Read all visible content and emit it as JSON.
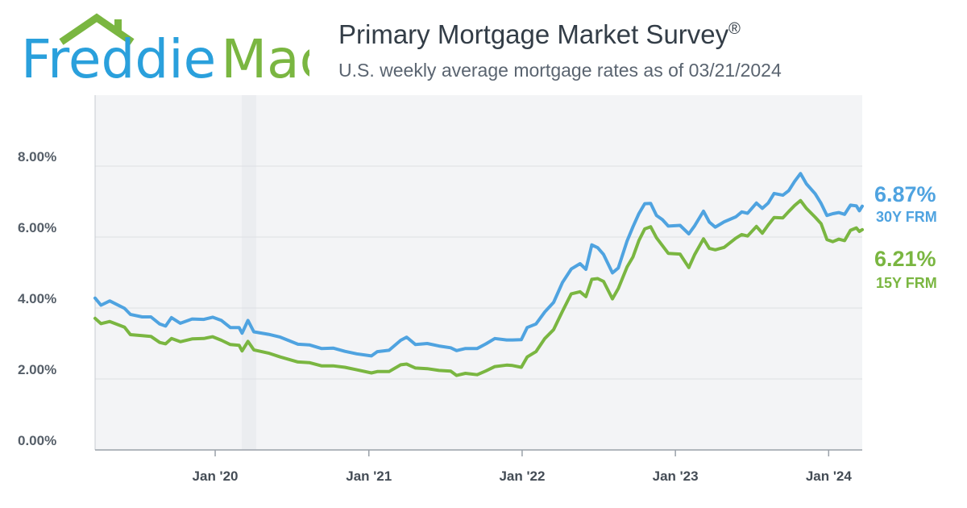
{
  "logo": {
    "part1": "Freddie",
    "part2": "Mac",
    "house_icon": "house-roof-icon"
  },
  "header": {
    "title": "Primary Mortgage Market Survey",
    "title_mark": "®",
    "subtitle": "U.S. weekly average mortgage rates as of 03/21/2024"
  },
  "colors": {
    "series_30y": "#4fa3e0",
    "series_15y": "#7ab641",
    "grid": "#dcdfe3",
    "text": "#555e68"
  },
  "chart_data": {
    "type": "line",
    "xlabel": "",
    "ylabel": "",
    "ylim": [
      0,
      10
    ],
    "xlim": [
      "2019-03-21",
      "2024-03-21"
    ],
    "grid": true,
    "legend": "end-labels-right",
    "yticks": [
      {
        "value": 0,
        "label": "0.00%"
      },
      {
        "value": 2,
        "label": "2.00%"
      },
      {
        "value": 4,
        "label": "4.00%"
      },
      {
        "value": 6,
        "label": "6.00%"
      },
      {
        "value": 8,
        "label": "8.00%"
      }
    ],
    "xticks": [
      {
        "date": "2020-01-01",
        "label": "Jan '20"
      },
      {
        "date": "2021-01-01",
        "label": "Jan '21"
      },
      {
        "date": "2022-01-01",
        "label": "Jan '22"
      },
      {
        "date": "2023-01-01",
        "label": "Jan '23"
      },
      {
        "date": "2024-01-01",
        "label": "Jan '24"
      }
    ],
    "series": [
      {
        "name": "30Y FRM",
        "end_value_label": "6.87%",
        "color": "#4fa3e0",
        "points": [
          [
            "2019-03-21",
            4.28
          ],
          [
            "2019-04-04",
            4.08
          ],
          [
            "2019-04-25",
            4.2
          ],
          [
            "2019-05-30",
            3.99
          ],
          [
            "2019-06-13",
            3.82
          ],
          [
            "2019-07-11",
            3.75
          ],
          [
            "2019-08-01",
            3.75
          ],
          [
            "2019-08-22",
            3.55
          ],
          [
            "2019-09-05",
            3.49
          ],
          [
            "2019-09-19",
            3.73
          ],
          [
            "2019-10-10",
            3.57
          ],
          [
            "2019-11-07",
            3.69
          ],
          [
            "2019-12-05",
            3.68
          ],
          [
            "2019-12-26",
            3.74
          ],
          [
            "2020-01-16",
            3.65
          ],
          [
            "2020-02-06",
            3.45
          ],
          [
            "2020-02-27",
            3.45
          ],
          [
            "2020-03-05",
            3.29
          ],
          [
            "2020-03-19",
            3.65
          ],
          [
            "2020-04-02",
            3.33
          ],
          [
            "2020-05-07",
            3.26
          ],
          [
            "2020-06-04",
            3.18
          ],
          [
            "2020-07-16",
            2.98
          ],
          [
            "2020-08-13",
            2.96
          ],
          [
            "2020-09-10",
            2.86
          ],
          [
            "2020-10-08",
            2.87
          ],
          [
            "2020-11-05",
            2.78
          ],
          [
            "2020-12-03",
            2.71
          ],
          [
            "2021-01-07",
            2.65
          ],
          [
            "2021-01-21",
            2.77
          ],
          [
            "2021-02-18",
            2.81
          ],
          [
            "2021-03-18",
            3.09
          ],
          [
            "2021-04-01",
            3.18
          ],
          [
            "2021-04-22",
            2.97
          ],
          [
            "2021-05-20",
            3.0
          ],
          [
            "2021-06-17",
            2.93
          ],
          [
            "2021-07-15",
            2.88
          ],
          [
            "2021-07-29",
            2.8
          ],
          [
            "2021-08-19",
            2.86
          ],
          [
            "2021-09-16",
            2.86
          ],
          [
            "2021-10-07",
            2.99
          ],
          [
            "2021-10-28",
            3.14
          ],
          [
            "2021-11-25",
            3.1
          ],
          [
            "2021-12-09",
            3.1
          ],
          [
            "2021-12-30",
            3.11
          ],
          [
            "2022-01-13",
            3.45
          ],
          [
            "2022-02-03",
            3.55
          ],
          [
            "2022-02-24",
            3.89
          ],
          [
            "2022-03-17",
            4.16
          ],
          [
            "2022-04-07",
            4.72
          ],
          [
            "2022-04-28",
            5.1
          ],
          [
            "2022-05-19",
            5.25
          ],
          [
            "2022-06-02",
            5.09
          ],
          [
            "2022-06-16",
            5.78
          ],
          [
            "2022-06-30",
            5.7
          ],
          [
            "2022-07-14",
            5.51
          ],
          [
            "2022-08-04",
            4.99
          ],
          [
            "2022-08-18",
            5.13
          ],
          [
            "2022-09-08",
            5.89
          ],
          [
            "2022-09-22",
            6.29
          ],
          [
            "2022-10-06",
            6.66
          ],
          [
            "2022-10-20",
            6.94
          ],
          [
            "2022-11-03",
            6.95
          ],
          [
            "2022-11-17",
            6.61
          ],
          [
            "2022-12-01",
            6.49
          ],
          [
            "2022-12-15",
            6.31
          ],
          [
            "2023-01-12",
            6.33
          ],
          [
            "2023-02-02",
            6.09
          ],
          [
            "2023-02-16",
            6.32
          ],
          [
            "2023-03-09",
            6.73
          ],
          [
            "2023-03-23",
            6.42
          ],
          [
            "2023-04-06",
            6.28
          ],
          [
            "2023-04-27",
            6.43
          ],
          [
            "2023-05-25",
            6.57
          ],
          [
            "2023-06-08",
            6.71
          ],
          [
            "2023-06-22",
            6.67
          ],
          [
            "2023-07-13",
            6.96
          ],
          [
            "2023-07-27",
            6.81
          ],
          [
            "2023-08-10",
            6.96
          ],
          [
            "2023-08-24",
            7.23
          ],
          [
            "2023-09-14",
            7.18
          ],
          [
            "2023-09-28",
            7.31
          ],
          [
            "2023-10-12",
            7.57
          ],
          [
            "2023-10-26",
            7.79
          ],
          [
            "2023-11-09",
            7.5
          ],
          [
            "2023-11-30",
            7.22
          ],
          [
            "2023-12-14",
            6.95
          ],
          [
            "2023-12-28",
            6.61
          ],
          [
            "2024-01-11",
            6.66
          ],
          [
            "2024-01-25",
            6.69
          ],
          [
            "2024-02-08",
            6.64
          ],
          [
            "2024-02-22",
            6.9
          ],
          [
            "2024-03-07",
            6.88
          ],
          [
            "2024-03-14",
            6.74
          ],
          [
            "2024-03-21",
            6.87
          ]
        ]
      },
      {
        "name": "15Y FRM",
        "end_value_label": "6.21%",
        "color": "#7ab641",
        "points": [
          [
            "2019-03-21",
            3.71
          ],
          [
            "2019-04-04",
            3.56
          ],
          [
            "2019-04-25",
            3.62
          ],
          [
            "2019-05-30",
            3.46
          ],
          [
            "2019-06-13",
            3.25
          ],
          [
            "2019-07-11",
            3.22
          ],
          [
            "2019-08-01",
            3.2
          ],
          [
            "2019-08-22",
            3.03
          ],
          [
            "2019-09-05",
            2.99
          ],
          [
            "2019-09-19",
            3.14
          ],
          [
            "2019-10-10",
            3.05
          ],
          [
            "2019-11-07",
            3.13
          ],
          [
            "2019-12-05",
            3.14
          ],
          [
            "2019-12-26",
            3.19
          ],
          [
            "2020-01-16",
            3.09
          ],
          [
            "2020-02-06",
            2.97
          ],
          [
            "2020-02-27",
            2.95
          ],
          [
            "2020-03-05",
            2.79
          ],
          [
            "2020-03-19",
            3.06
          ],
          [
            "2020-04-02",
            2.82
          ],
          [
            "2020-05-07",
            2.73
          ],
          [
            "2020-06-04",
            2.62
          ],
          [
            "2020-07-16",
            2.48
          ],
          [
            "2020-08-13",
            2.46
          ],
          [
            "2020-09-10",
            2.37
          ],
          [
            "2020-10-08",
            2.37
          ],
          [
            "2020-11-05",
            2.33
          ],
          [
            "2020-12-03",
            2.26
          ],
          [
            "2021-01-07",
            2.17
          ],
          [
            "2021-01-21",
            2.21
          ],
          [
            "2021-02-18",
            2.21
          ],
          [
            "2021-03-18",
            2.4
          ],
          [
            "2021-04-01",
            2.42
          ],
          [
            "2021-04-22",
            2.31
          ],
          [
            "2021-05-20",
            2.29
          ],
          [
            "2021-06-17",
            2.24
          ],
          [
            "2021-07-15",
            2.22
          ],
          [
            "2021-07-29",
            2.1
          ],
          [
            "2021-08-19",
            2.16
          ],
          [
            "2021-09-16",
            2.12
          ],
          [
            "2021-10-07",
            2.23
          ],
          [
            "2021-10-28",
            2.35
          ],
          [
            "2021-11-25",
            2.39
          ],
          [
            "2021-12-09",
            2.38
          ],
          [
            "2021-12-30",
            2.33
          ],
          [
            "2022-01-13",
            2.62
          ],
          [
            "2022-02-03",
            2.77
          ],
          [
            "2022-02-24",
            3.14
          ],
          [
            "2022-03-17",
            3.39
          ],
          [
            "2022-04-07",
            3.91
          ],
          [
            "2022-04-28",
            4.4
          ],
          [
            "2022-05-19",
            4.46
          ],
          [
            "2022-06-02",
            4.32
          ],
          [
            "2022-06-16",
            4.81
          ],
          [
            "2022-06-30",
            4.83
          ],
          [
            "2022-07-14",
            4.75
          ],
          [
            "2022-08-04",
            4.26
          ],
          [
            "2022-08-18",
            4.55
          ],
          [
            "2022-09-08",
            5.16
          ],
          [
            "2022-09-22",
            5.44
          ],
          [
            "2022-10-06",
            5.9
          ],
          [
            "2022-10-20",
            6.23
          ],
          [
            "2022-11-03",
            6.29
          ],
          [
            "2022-11-17",
            5.98
          ],
          [
            "2022-12-01",
            5.76
          ],
          [
            "2022-12-15",
            5.54
          ],
          [
            "2023-01-12",
            5.52
          ],
          [
            "2023-02-02",
            5.14
          ],
          [
            "2023-02-16",
            5.51
          ],
          [
            "2023-03-09",
            5.95
          ],
          [
            "2023-03-23",
            5.68
          ],
          [
            "2023-04-06",
            5.64
          ],
          [
            "2023-04-27",
            5.71
          ],
          [
            "2023-05-25",
            5.97
          ],
          [
            "2023-06-08",
            6.07
          ],
          [
            "2023-06-22",
            6.03
          ],
          [
            "2023-07-13",
            6.3
          ],
          [
            "2023-07-27",
            6.11
          ],
          [
            "2023-08-10",
            6.34
          ],
          [
            "2023-08-24",
            6.55
          ],
          [
            "2023-09-14",
            6.54
          ],
          [
            "2023-09-28",
            6.72
          ],
          [
            "2023-10-12",
            6.89
          ],
          [
            "2023-10-26",
            7.03
          ],
          [
            "2023-11-09",
            6.81
          ],
          [
            "2023-11-30",
            6.56
          ],
          [
            "2023-12-14",
            6.38
          ],
          [
            "2023-12-28",
            5.93
          ],
          [
            "2024-01-11",
            5.87
          ],
          [
            "2024-01-25",
            5.94
          ],
          [
            "2024-02-08",
            5.9
          ],
          [
            "2024-02-22",
            6.19
          ],
          [
            "2024-03-07",
            6.26
          ],
          [
            "2024-03-14",
            6.16
          ],
          [
            "2024-03-21",
            6.21
          ]
        ]
      }
    ]
  }
}
